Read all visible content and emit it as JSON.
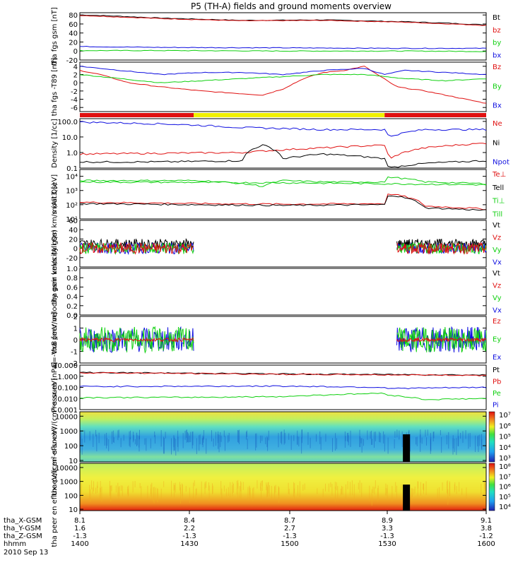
{
  "title": "P5 (TH-A) fields and ground moments overview",
  "date_label": "2010 Sep 13",
  "ephemeris": {
    "rows": [
      {
        "label": "tha_X-GSM",
        "values": [
          "8.1",
          "8.4",
          "8.7",
          "8.9",
          "9.1"
        ]
      },
      {
        "label": "tha_Y-GSM",
        "values": [
          "1.6",
          "2.2",
          "2.7",
          "3.3",
          "3.8"
        ]
      },
      {
        "label": "tha_Z-GSM",
        "values": [
          "-1.3",
          "-1.3",
          "-1.3",
          "-1.3",
          "-1.2"
        ]
      },
      {
        "label": "hhmm",
        "values": [
          "1400",
          "1430",
          "1500",
          "1530",
          "1600"
        ]
      }
    ]
  },
  "colors": {
    "black": "#000000",
    "red": "#e01010",
    "green": "#10d010",
    "blue": "#1010e0",
    "yellow": "#f0f000"
  },
  "chart_data": [
    {
      "id": "fgs",
      "type": "line",
      "ylabel": "tha fgs gsm [nT]",
      "ylim": [
        -20,
        85
      ],
      "ticks": [
        "80",
        "60",
        "40",
        "20",
        "0",
        "-20"
      ],
      "tick_values": [
        80,
        60,
        40,
        20,
        0,
        -20
      ],
      "series": [
        {
          "name": "Bt",
          "color": "#000000",
          "x": [
            0,
            0.05,
            0.2,
            0.4,
            0.6,
            0.8,
            0.9,
            1
          ],
          "y": [
            80,
            79,
            73,
            68,
            69,
            65,
            62,
            58
          ]
        },
        {
          "name": "bz",
          "color": "#e01010",
          "x": [
            0,
            0.2,
            0.4,
            0.6,
            0.8,
            1
          ],
          "y": [
            79,
            72,
            67,
            68,
            64,
            57
          ]
        },
        {
          "name": "by",
          "color": "#10d010",
          "x": [
            0,
            0.2,
            0.5,
            0.8,
            1
          ],
          "y": [
            1,
            1,
            0,
            0,
            -1
          ]
        },
        {
          "name": "bx",
          "color": "#1010e0",
          "x": [
            0,
            0.2,
            0.5,
            0.8,
            1
          ],
          "y": [
            10,
            8,
            7,
            6,
            6
          ]
        }
      ],
      "legend": [
        "Bt",
        "bz",
        "by",
        "bx"
      ]
    },
    {
      "id": "fgsdbo",
      "type": "line",
      "ylabel": "tha fgs -T89 [nT]",
      "ylim": [
        -7,
        5
      ],
      "ticks": [
        "4",
        "2",
        "0",
        "-2",
        "-4",
        "-6"
      ],
      "tick_values": [
        4,
        2,
        0,
        -2,
        -4,
        -6
      ],
      "series": [
        {
          "name": "Bz",
          "color": "#e01010",
          "x": [
            0,
            0.05,
            0.12,
            0.2,
            0.3,
            0.45,
            0.5,
            0.55,
            0.6,
            0.65,
            0.7,
            0.78,
            0.85,
            0.9,
            1
          ],
          "y": [
            3,
            2,
            0,
            -1,
            -2,
            -3,
            -1.5,
            1,
            2.5,
            3,
            4,
            -1,
            -2,
            -3,
            -5
          ]
        },
        {
          "name": "By",
          "color": "#10d010",
          "x": [
            0,
            0.1,
            0.2,
            0.3,
            0.4,
            0.5,
            0.6,
            0.7,
            0.8,
            0.9,
            1
          ],
          "y": [
            2,
            1,
            0,
            0.5,
            1,
            1.5,
            2,
            2,
            1,
            0.5,
            1
          ]
        },
        {
          "name": "Bx",
          "color": "#1010e0",
          "x": [
            0,
            0.1,
            0.2,
            0.3,
            0.4,
            0.5,
            0.6,
            0.7,
            0.75,
            0.8,
            0.9,
            1
          ],
          "y": [
            4,
            3,
            2,
            2.5,
            2.5,
            2,
            3,
            3.5,
            2,
            3,
            2.5,
            2
          ]
        }
      ],
      "legend": [
        "Bz",
        "By",
        "Bx"
      ]
    },
    {
      "id": "mode",
      "type": "bar",
      "segments": [
        {
          "from": 0,
          "to": 0.28,
          "color": "#e01010"
        },
        {
          "from": 0.28,
          "to": 0.75,
          "color": "#f0f000"
        },
        {
          "from": 0.75,
          "to": 1,
          "color": "#e01010"
        }
      ]
    },
    {
      "id": "density",
      "type": "line",
      "ylabel": "Density [1/cc]",
      "scale": "log",
      "ylim": [
        0.1,
        150
      ],
      "ticks": [
        "100.0",
        "10.0",
        "1.0",
        "0.1"
      ],
      "tick_values": [
        100,
        10,
        1,
        0.1
      ],
      "series": [
        {
          "name": "Ne",
          "color": "#e01010",
          "x": [
            0,
            0.2,
            0.4,
            0.5,
            0.6,
            0.75,
            0.76,
            0.85,
            1
          ],
          "y": [
            0.8,
            0.9,
            1,
            1.5,
            2,
            3,
            0.3,
            2,
            4
          ]
        },
        {
          "name": "Ni",
          "color": "#000000",
          "x": [
            0,
            0.2,
            0.4,
            0.45,
            0.5,
            0.6,
            0.75,
            0.76,
            0.85,
            1
          ],
          "y": [
            0.25,
            0.25,
            0.3,
            3,
            0.4,
            0.8,
            0.4,
            0.1,
            0.2,
            0.3
          ]
        },
        {
          "name": "Npot",
          "color": "#1010e0",
          "x": [
            0,
            0.2,
            0.4,
            0.6,
            0.75,
            0.76,
            0.85,
            1
          ],
          "y": [
            90,
            70,
            40,
            30,
            30,
            10,
            30,
            30
          ]
        }
      ],
      "legend": [
        "Ne",
        "Ni",
        "Npot"
      ]
    },
    {
      "id": "temp",
      "type": "line",
      "ylabel": "moat3 [eV]",
      "scale": "log",
      "ylim": [
        10,
        30000
      ],
      "ticks": [
        "10⁴",
        "10³",
        "10²",
        "10¹"
      ],
      "tick_values": [
        10000,
        1000,
        100,
        10
      ],
      "series": [
        {
          "name": "Te⊥",
          "color": "#e01010",
          "x": [
            0,
            0.3,
            0.5,
            0.75,
            0.76,
            0.85,
            1
          ],
          "y": [
            150,
            120,
            110,
            120,
            600,
            80,
            50
          ]
        },
        {
          "name": "Tell",
          "color": "#000000",
          "x": [
            0,
            0.3,
            0.5,
            0.75,
            0.76,
            0.85,
            1
          ],
          "y": [
            120,
            100,
            90,
            100,
            500,
            60,
            40
          ]
        },
        {
          "name": "Ti⊥",
          "color": "#10d010",
          "x": [
            0,
            0.3,
            0.45,
            0.5,
            0.6,
            0.75,
            0.76,
            0.85,
            1
          ],
          "y": [
            5000,
            5000,
            2000,
            5000,
            4000,
            4000,
            9000,
            4000,
            3000
          ]
        },
        {
          "name": "Till",
          "color": "#10d010",
          "x": [
            0,
            0.5,
            1
          ],
          "y": [
            4000,
            3500,
            2500
          ]
        }
      ],
      "legend": [
        "Te⊥",
        "Tell",
        "Ti⊥",
        "Till"
      ]
    },
    {
      "id": "peir_vel",
      "type": "line",
      "ylabel": "tha peir velocity gsm km/s (All Qs)",
      "ylim": [
        -40,
        60
      ],
      "ticks": [
        "60",
        "40",
        "20",
        "0",
        "-20"
      ],
      "tick_values": [
        60,
        40,
        20,
        0,
        -20
      ],
      "segments": [
        [
          0,
          0.28
        ],
        [
          0.78,
          1
        ]
      ],
      "legend": [
        "Vt",
        "Vz",
        "Vy",
        "Vx"
      ]
    },
    {
      "id": "peer_vel",
      "type": "line",
      "ylabel": "tha peer velocity gsm km/s (All Qs)",
      "ylim": [
        0,
        1
      ],
      "ticks": [
        "1.0",
        "0.8",
        "0.6",
        "0.4",
        "0.2",
        "0.0"
      ],
      "tick_values": [
        1,
        0.8,
        0.6,
        0.4,
        0.2,
        0
      ],
      "legend": [
        "Vt",
        "Vz",
        "Vy",
        "Vx"
      ]
    },
    {
      "id": "efield",
      "type": "line",
      "ylabel": "E=-VxB [mV/m]",
      "ylim": [
        -2,
        2
      ],
      "ticks": [
        "2",
        "1",
        "0",
        "-1",
        "-2"
      ],
      "tick_values": [
        2,
        1,
        0,
        -1,
        -2
      ],
      "segments": [
        [
          0,
          0.28
        ],
        [
          0.78,
          1
        ]
      ],
      "legend": [
        "Ez",
        "Ey",
        "Ex"
      ]
    },
    {
      "id": "pressure",
      "type": "line",
      "ylabel": "Pressure [nPa]",
      "scale": "log",
      "ylim": [
        0.001,
        10
      ],
      "ticks": [
        "10.000",
        "1.000",
        "0.100",
        "0.010",
        "0.001"
      ],
      "tick_values": [
        10,
        1,
        0.1,
        0.01,
        0.001
      ],
      "series": [
        {
          "name": "Pt",
          "color": "#000000",
          "x": [
            0,
            0.5,
            1
          ],
          "y": [
            2.2,
            1.6,
            1.3
          ]
        },
        {
          "name": "Pb",
          "color": "#e01010",
          "x": [
            0,
            0.5,
            1
          ],
          "y": [
            2.1,
            1.5,
            1.2
          ]
        },
        {
          "name": "Pe",
          "color": "#10d010",
          "x": [
            0,
            0.3,
            0.5,
            0.75,
            0.76,
            0.85,
            1
          ],
          "y": [
            0.012,
            0.013,
            0.015,
            0.03,
            0.02,
            0.008,
            0.01
          ]
        },
        {
          "name": "Pi",
          "color": "#1010e0",
          "x": [
            0,
            0.5,
            0.75,
            0.76,
            1
          ],
          "y": [
            0.12,
            0.13,
            0.1,
            0.08,
            0.1
          ]
        }
      ],
      "legend": [
        "Pt",
        "Pb",
        "Pe",
        "Pi"
      ]
    },
    {
      "id": "peir_spec",
      "type": "heatmap",
      "ylabel": "tha peir en eflux eV/(cm²-s-sr-eV)",
      "scale": "log",
      "ylim": [
        8,
        20000
      ],
      "ticks": [
        "10000",
        "1000",
        "100",
        "10"
      ],
      "tick_values": [
        10000,
        1000,
        100,
        10
      ],
      "colorbar": [
        "10⁷",
        "10⁶",
        "10⁵",
        "10⁴",
        "10³"
      ]
    },
    {
      "id": "peer_spec",
      "type": "heatmap",
      "ylabel": "tha peer en eflux eV/(cm²-s-sr-eV)",
      "scale": "log",
      "ylim": [
        8,
        20000
      ],
      "ticks": [
        "10000",
        "1000",
        "100",
        "10"
      ],
      "tick_values": [
        10000,
        1000,
        100,
        10
      ],
      "colorbar": [
        "10⁸",
        "10⁷",
        "10⁶",
        "10⁵",
        "10⁴"
      ]
    }
  ]
}
